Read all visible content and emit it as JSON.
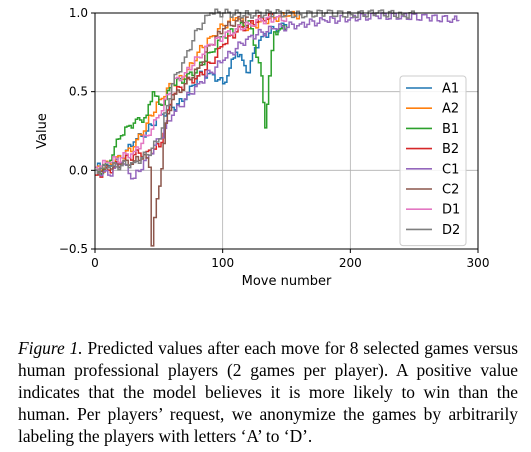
{
  "chart_data": {
    "type": "line",
    "xlabel": "Move number",
    "ylabel": "Value",
    "xlim": [
      0,
      300
    ],
    "ylim": [
      -0.5,
      1.0
    ],
    "xticks": [
      0,
      100,
      200,
      300
    ],
    "yticks": [
      -0.5,
      0.0,
      0.5,
      1.0
    ],
    "xtick_labels": [
      "0",
      "100",
      "200",
      "300"
    ],
    "ytick_labels": [
      "−0.5",
      "0.0",
      "0.5",
      "1.0"
    ],
    "grid": true,
    "legend_position": "right",
    "series": [
      {
        "name": "A1",
        "color": "#1f77b4",
        "x": [
          0,
          10,
          20,
          30,
          40,
          50,
          60,
          70,
          80,
          90,
          100,
          105,
          110,
          115,
          120,
          125,
          130,
          140,
          150
        ],
        "y": [
          0.02,
          0.03,
          0.08,
          0.18,
          0.25,
          0.35,
          0.4,
          0.45,
          0.6,
          0.62,
          0.55,
          0.65,
          0.75,
          0.7,
          0.62,
          0.78,
          0.85,
          0.9,
          0.92
        ]
      },
      {
        "name": "A2",
        "color": "#ff7f0e",
        "x": [
          0,
          10,
          20,
          30,
          40,
          50,
          60,
          70,
          80,
          90,
          100,
          110,
          120,
          130,
          140,
          150,
          160
        ],
        "y": [
          0.0,
          0.05,
          0.08,
          0.15,
          0.3,
          0.45,
          0.55,
          0.6,
          0.75,
          0.85,
          0.92,
          0.97,
          0.9,
          0.95,
          0.97,
          0.98,
          0.99
        ]
      },
      {
        "name": "B1",
        "color": "#2ca02c",
        "x": [
          0,
          5,
          10,
          15,
          20,
          25,
          30,
          35,
          40,
          45,
          50,
          55,
          60,
          70,
          80,
          90,
          100,
          110,
          120,
          130,
          133,
          136,
          140,
          145,
          150
        ],
        "y": [
          0.0,
          -0.02,
          0.05,
          0.15,
          0.22,
          0.28,
          0.3,
          0.32,
          0.35,
          0.5,
          0.42,
          0.45,
          0.55,
          0.58,
          0.65,
          0.75,
          0.85,
          0.9,
          0.95,
          0.6,
          0.27,
          0.6,
          0.88,
          0.9,
          0.92
        ]
      },
      {
        "name": "B2",
        "color": "#d62728",
        "x": [
          0,
          10,
          20,
          30,
          40,
          50,
          55,
          60,
          70,
          80,
          90,
          100,
          110,
          120,
          130,
          140
        ],
        "y": [
          -0.03,
          0.0,
          0.05,
          0.1,
          0.12,
          0.15,
          0.3,
          0.48,
          0.55,
          0.6,
          0.68,
          0.8,
          0.88,
          0.93,
          0.97,
          0.98
        ]
      },
      {
        "name": "C1",
        "color": "#9467bd",
        "x": [
          0,
          10,
          20,
          30,
          40,
          50,
          60,
          80,
          100,
          120,
          140,
          160,
          180,
          200,
          220,
          240,
          260,
          280,
          285
        ],
        "y": [
          0.0,
          -0.03,
          0.05,
          -0.05,
          0.08,
          0.2,
          0.35,
          0.55,
          0.7,
          0.85,
          0.9,
          0.93,
          0.95,
          0.97,
          0.98,
          0.98,
          0.97,
          0.96,
          0.95
        ]
      },
      {
        "name": "C2",
        "color": "#8c564b",
        "x": [
          0,
          10,
          20,
          30,
          38,
          42,
          44,
          46,
          50,
          55,
          60,
          70,
          80,
          90,
          100,
          110,
          120
        ],
        "y": [
          0.0,
          0.02,
          0.04,
          0.06,
          0.1,
          0.02,
          -0.48,
          -0.3,
          -0.1,
          0.3,
          0.45,
          0.55,
          0.65,
          0.8,
          0.9,
          0.95,
          0.97
        ]
      },
      {
        "name": "D1",
        "color": "#e377c2",
        "x": [
          0,
          10,
          20,
          30,
          40,
          50,
          60,
          70,
          80,
          90,
          100,
          110,
          120,
          130,
          140,
          150
        ],
        "y": [
          0.02,
          0.05,
          0.08,
          0.12,
          0.22,
          0.35,
          0.55,
          0.62,
          0.72,
          0.8,
          0.85,
          0.9,
          0.93,
          0.95,
          0.96,
          0.97
        ]
      },
      {
        "name": "D2",
        "color": "#7f7f7f",
        "x": [
          0,
          10,
          20,
          30,
          40,
          50,
          60,
          70,
          80,
          90,
          100,
          120,
          140,
          160,
          180,
          200,
          220,
          240,
          250
        ],
        "y": [
          0.0,
          0.02,
          0.03,
          0.05,
          0.1,
          0.2,
          0.55,
          0.72,
          0.9,
          1.0,
          1.0,
          0.99,
          1.0,
          0.99,
          1.0,
          0.99,
          1.0,
          0.99,
          0.99
        ]
      }
    ]
  },
  "caption": {
    "label": "Figure 1.",
    "text": " Predicted values after each move for 8 selected games versus human professional players (2 games per player). A positive value indicates that the model believes it is more likely to win than the human.  Per players’ request, we anonymize the games by arbitrarily labeling the players with letters ‘A’ to ‘D’."
  }
}
